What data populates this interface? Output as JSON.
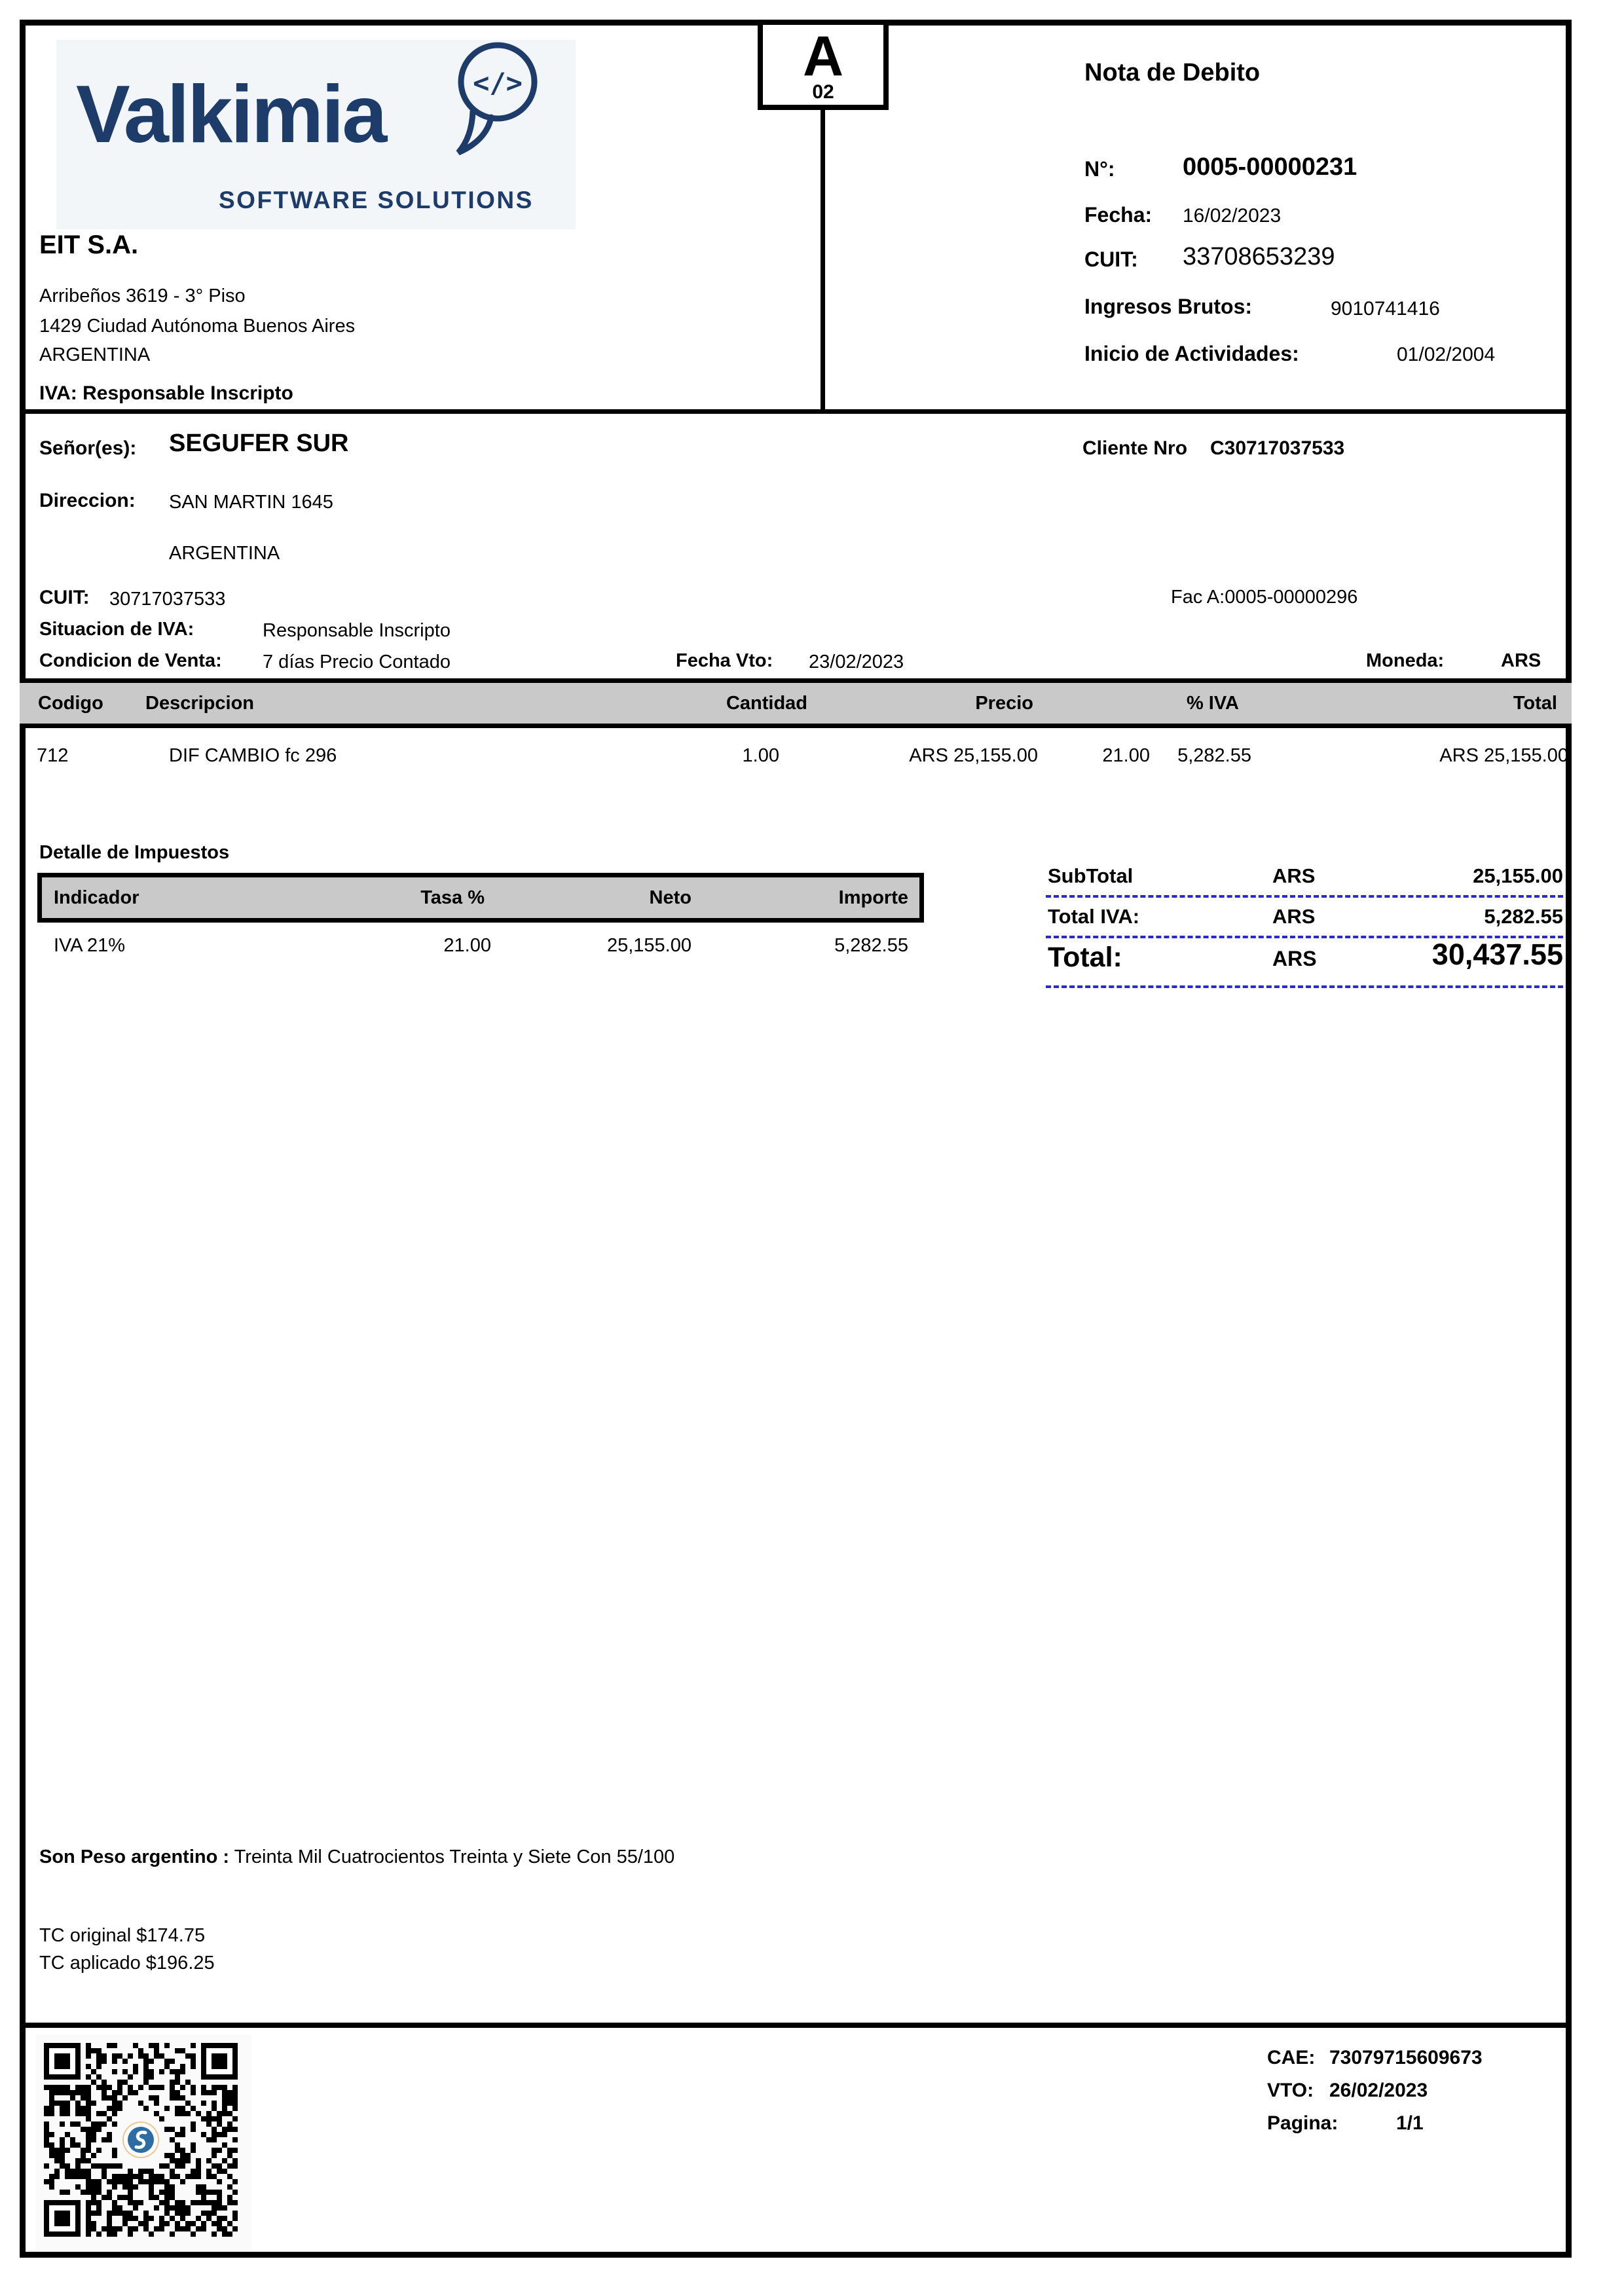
{
  "colors": {
    "navy": "#1e3c69",
    "logo_background": "#f2f6f9",
    "table_header_gray": "#c9c9c9",
    "dash_blue": "#2929cf",
    "qr_logo_blue": "#2e6da4",
    "border_black": "#000000"
  },
  "issuer": {
    "logo_text": "Valkimia",
    "logo_tagline": "SOFTWARE SOLUTIONS",
    "logo_glyph": "</>",
    "name": "EIT S.A.",
    "address_line1": "Arribeños 3619 - 3° Piso",
    "address_line2": "1429  Ciudad Autónoma Buenos Aires",
    "address_line3": "ARGENTINA",
    "iva_condition": "IVA: Responsable Inscripto"
  },
  "doc_box": {
    "letter": "A",
    "code": "02"
  },
  "doc_header": {
    "title": "Nota de Debito",
    "number_label": "N°:",
    "number": "0005-00000231",
    "date_label": "Fecha:",
    "date": "16/02/2023",
    "cuit_label": "CUIT:",
    "cuit": "33708653239",
    "gross_income_label": "Ingresos Brutos:",
    "gross_income": "9010741416",
    "activities_start_label": "Inicio de Actividades:",
    "activities_start": "01/02/2004"
  },
  "customer": {
    "holder_label": "Señor(es):",
    "name": "SEGUFER SUR",
    "client_no_label": "Cliente Nro",
    "client_no": "C30717037533",
    "address_label": "Direccion:",
    "address": "SAN MARTIN 1645",
    "country": "ARGENTINA",
    "cuit_label": "CUIT:",
    "cuit": "30717037533",
    "invoice_ref": "Fac A:0005-00000296",
    "iva_situation_label": "Situacion de IVA:",
    "iva_situation": "Responsable Inscripto",
    "sale_condition_label": "Condicion de Venta:",
    "sale_condition": "7 días Precio Contado",
    "due_date_label": "Fecha Vto:",
    "due_date": "23/02/2023",
    "currency_label": "Moneda:",
    "currency": "ARS"
  },
  "items_table": {
    "headers": {
      "code": "Codigo",
      "description": "Descripcion",
      "quantity": "Cantidad",
      "price": "Precio",
      "iva_pct": "% IVA",
      "total": "Total"
    },
    "rows": [
      {
        "code": "712",
        "description": "DIF CAMBIO fc 296",
        "quantity": "1.00",
        "price": "ARS 25,155.00",
        "iva_pct": "21.00",
        "iva_amount": "5,282.55",
        "total": "ARS 25,155.00"
      }
    ]
  },
  "tax_detail": {
    "title": "Detalle de Impuestos",
    "headers": {
      "indicator": "Indicador",
      "rate": "Tasa %",
      "net": "Neto",
      "amount": "Importe"
    },
    "rows": [
      {
        "indicator": "IVA 21%",
        "rate": "21.00",
        "net": "25,155.00",
        "amount": "5,282.55"
      }
    ]
  },
  "totals": {
    "subtotal_label": "SubTotal",
    "subtotal_currency": "ARS",
    "subtotal": "25,155.00",
    "total_iva_label": "Total IVA:",
    "total_iva_currency": "ARS",
    "total_iva": "5,282.55",
    "total_label": "Total:",
    "total_currency": "ARS",
    "total": "30,437.55"
  },
  "notes": {
    "amount_in_words_label": "Son Peso argentino :",
    "amount_in_words": "Treinta Mil Cuatrocientos Treinta y Siete Con 55/100",
    "tc_original": "TC original $174.75",
    "tc_applied": "TC aplicado $196.25"
  },
  "footer": {
    "cae_label": "CAE:",
    "cae": "73079715609673",
    "vto_label": "VTO:",
    "vto": "26/02/2023",
    "page_label": "Pagina:",
    "page": "1/1"
  }
}
